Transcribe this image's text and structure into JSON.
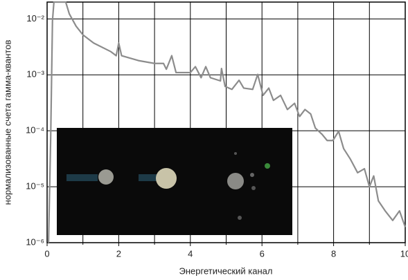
{
  "chart_data": {
    "type": "line",
    "xlabel": "Энергетический канал",
    "ylabel": "нормализованные счета гамма-квантов",
    "log_y": true,
    "grid": true,
    "xlim": [
      0,
      10
    ],
    "xticks": [
      0,
      2,
      4,
      6,
      8,
      10
    ],
    "x_minor_ticks": [
      1,
      3,
      5,
      7,
      9
    ],
    "ylim": [
      1e-06,
      0.02
    ],
    "yticks": [
      {
        "value": 0.01,
        "label": "10⁻²"
      },
      {
        "value": 0.001,
        "label": "10⁻³"
      },
      {
        "value": 0.0001,
        "label": "10⁻⁴"
      },
      {
        "value": 1e-05,
        "label": "10⁻⁵"
      },
      {
        "value": 1e-06,
        "label": "10⁻⁶"
      }
    ],
    "series": [
      {
        "color": "#8c8c8c",
        "x": [
          0.04,
          0.1,
          0.15,
          0.19,
          0.52,
          0.62,
          0.81,
          1.0,
          1.3,
          1.78,
          1.93,
          2.0,
          2.08,
          2.55,
          3.0,
          3.25,
          3.33,
          3.48,
          3.6,
          4.0,
          4.14,
          4.3,
          4.43,
          4.56,
          4.84,
          4.87,
          4.97,
          5.16,
          5.36,
          5.49,
          5.74,
          5.88,
          6.03,
          6.19,
          6.32,
          6.52,
          6.71,
          6.91,
          7.05,
          7.2,
          7.36,
          7.49,
          7.68,
          7.82,
          7.98,
          8.14,
          8.28,
          8.47,
          8.67,
          8.86,
          9.0,
          9.12,
          9.25,
          9.44,
          9.65,
          9.84,
          10.0
        ],
        "values": [
          1e-06,
          7.4e-05,
          0.0093,
          0.02,
          0.02,
          0.0123,
          0.0074,
          0.0052,
          0.0037,
          0.0026,
          0.0022,
          0.0037,
          0.0022,
          0.0018,
          0.0016,
          0.0016,
          0.00126,
          0.0022,
          0.0011,
          0.0011,
          0.0014,
          0.00089,
          0.0014,
          0.00089,
          0.00078,
          0.0013,
          0.00062,
          0.00055,
          0.0008,
          0.00058,
          0.00055,
          0.00102,
          0.00043,
          0.00058,
          0.00035,
          0.00043,
          0.00024,
          0.00031,
          0.00018,
          0.00024,
          0.0002,
          0.000112,
          8.6e-05,
          6.7e-05,
          6.7e-05,
          9.8e-05,
          4.8e-05,
          3.1e-05,
          1.78e-05,
          2.1e-05,
          1e-05,
          1.56e-05,
          5.6e-06,
          3.7e-06,
          2.5e-06,
          3.7e-06,
          1.9e-06
        ]
      }
    ]
  }
}
